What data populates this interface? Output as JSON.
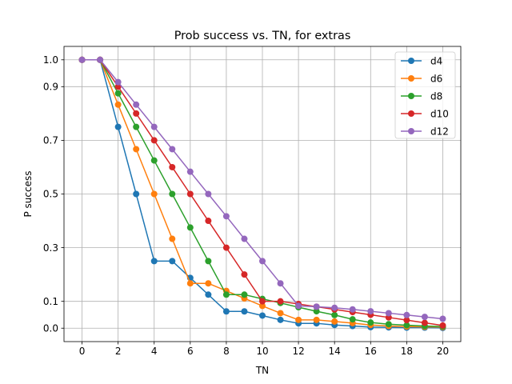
{
  "chart_data": {
    "type": "line",
    "title": "Prob success vs. TN, for extras",
    "xlabel": "TN",
    "ylabel": "P success",
    "xlim": [
      -1,
      21
    ],
    "ylim": [
      -0.05,
      1.05
    ],
    "x_ticks": [
      0,
      2,
      4,
      6,
      8,
      10,
      12,
      14,
      16,
      18,
      20
    ],
    "y_ticks": [
      0.0,
      0.1,
      0.3,
      0.5,
      0.7,
      0.9,
      1.0
    ],
    "y_tick_labels": [
      "0.0",
      "0.1",
      "0.3",
      "0.5",
      "0.7",
      "0.9",
      "1.0"
    ],
    "grid": true,
    "legend_position": "top-right",
    "x": [
      0,
      1,
      2,
      3,
      4,
      5,
      6,
      7,
      8,
      9,
      10,
      11,
      12,
      13,
      14,
      15,
      16,
      17,
      18,
      19,
      20
    ],
    "series": [
      {
        "name": "d4",
        "color": "#1f77b4",
        "values": [
          1.0,
          1.0,
          0.75,
          0.5,
          0.25,
          0.25,
          0.1875,
          0.125,
          0.0625,
          0.0625,
          0.047,
          0.031,
          0.018,
          0.018,
          0.012,
          0.008,
          0.004,
          0.003,
          0.002,
          0.002,
          0.001
        ]
      },
      {
        "name": "d6",
        "color": "#ff7f0e",
        "values": [
          1.0,
          1.0,
          0.833,
          0.667,
          0.5,
          0.333,
          0.167,
          0.167,
          0.139,
          0.111,
          0.083,
          0.056,
          0.031,
          0.031,
          0.025,
          0.019,
          0.012,
          0.008,
          0.006,
          0.005,
          0.004
        ]
      },
      {
        "name": "d8",
        "color": "#2ca02c",
        "values": [
          1.0,
          1.0,
          0.875,
          0.75,
          0.625,
          0.5,
          0.375,
          0.25,
          0.125,
          0.125,
          0.109,
          0.094,
          0.078,
          0.063,
          0.049,
          0.033,
          0.021,
          0.015,
          0.011,
          0.008,
          0.006
        ]
      },
      {
        "name": "d10",
        "color": "#d62728",
        "values": [
          1.0,
          1.0,
          0.9,
          0.8,
          0.7,
          0.6,
          0.5,
          0.4,
          0.3,
          0.2,
          0.1,
          0.1,
          0.09,
          0.08,
          0.07,
          0.06,
          0.05,
          0.04,
          0.03,
          0.02,
          0.01
        ]
      },
      {
        "name": "d12",
        "color": "#9467bd",
        "values": [
          1.0,
          1.0,
          0.917,
          0.833,
          0.75,
          0.667,
          0.583,
          0.5,
          0.417,
          0.333,
          0.25,
          0.167,
          0.083,
          0.08,
          0.076,
          0.07,
          0.063,
          0.056,
          0.049,
          0.042,
          0.035
        ]
      }
    ]
  }
}
